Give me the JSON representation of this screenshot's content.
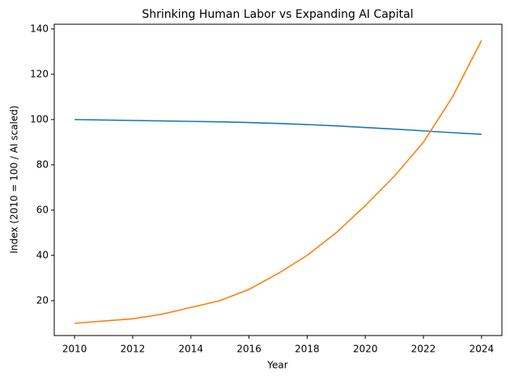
{
  "chart_data": {
    "type": "line",
    "title": "Shrinking Human Labor vs Expanding AI Capital",
    "x_label": "Year",
    "y_label": "Index (2010 = 100 / AI scaled)",
    "x": [
      2010,
      2011,
      2012,
      2013,
      2014,
      2015,
      2016,
      2017,
      2018,
      2019,
      2020,
      2021,
      2022,
      2023,
      2024
    ],
    "series": [
      {
        "color": "#1f77b4",
        "values": [
          100,
          99.8,
          99.6,
          99.4,
          99.2,
          99.0,
          98.7,
          98.3,
          97.8,
          97.2,
          96.5,
          95.8,
          95.0,
          94.2,
          93.5
        ]
      },
      {
        "color": "#ff7f0e",
        "values": [
          10,
          11,
          12,
          14,
          17,
          20,
          25,
          32,
          40,
          50,
          62,
          75,
          90,
          110,
          135
        ]
      }
    ],
    "xlim": [
      2009.3,
      2024.7
    ],
    "xticks": [
      2010,
      2012,
      2014,
      2016,
      2018,
      2020,
      2022,
      2024
    ],
    "ylim": [
      4.6,
      142.1
    ],
    "yticks": [
      20,
      40,
      60,
      80,
      100,
      120,
      140
    ]
  }
}
